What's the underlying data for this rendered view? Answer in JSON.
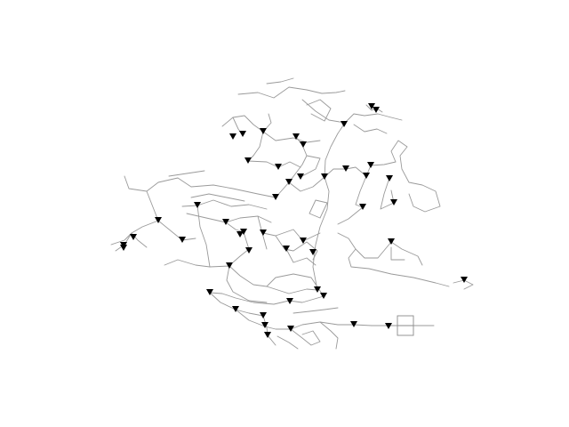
{
  "diagram": {
    "type": "network",
    "colors": {
      "edge": "#9a9a9a",
      "node": "#000000",
      "background": "#ffffff",
      "source": "#8a8a8a"
    },
    "node_marker": "downward-triangle",
    "source_marker": "split-rectangle",
    "visible_node_count": 54
  }
}
